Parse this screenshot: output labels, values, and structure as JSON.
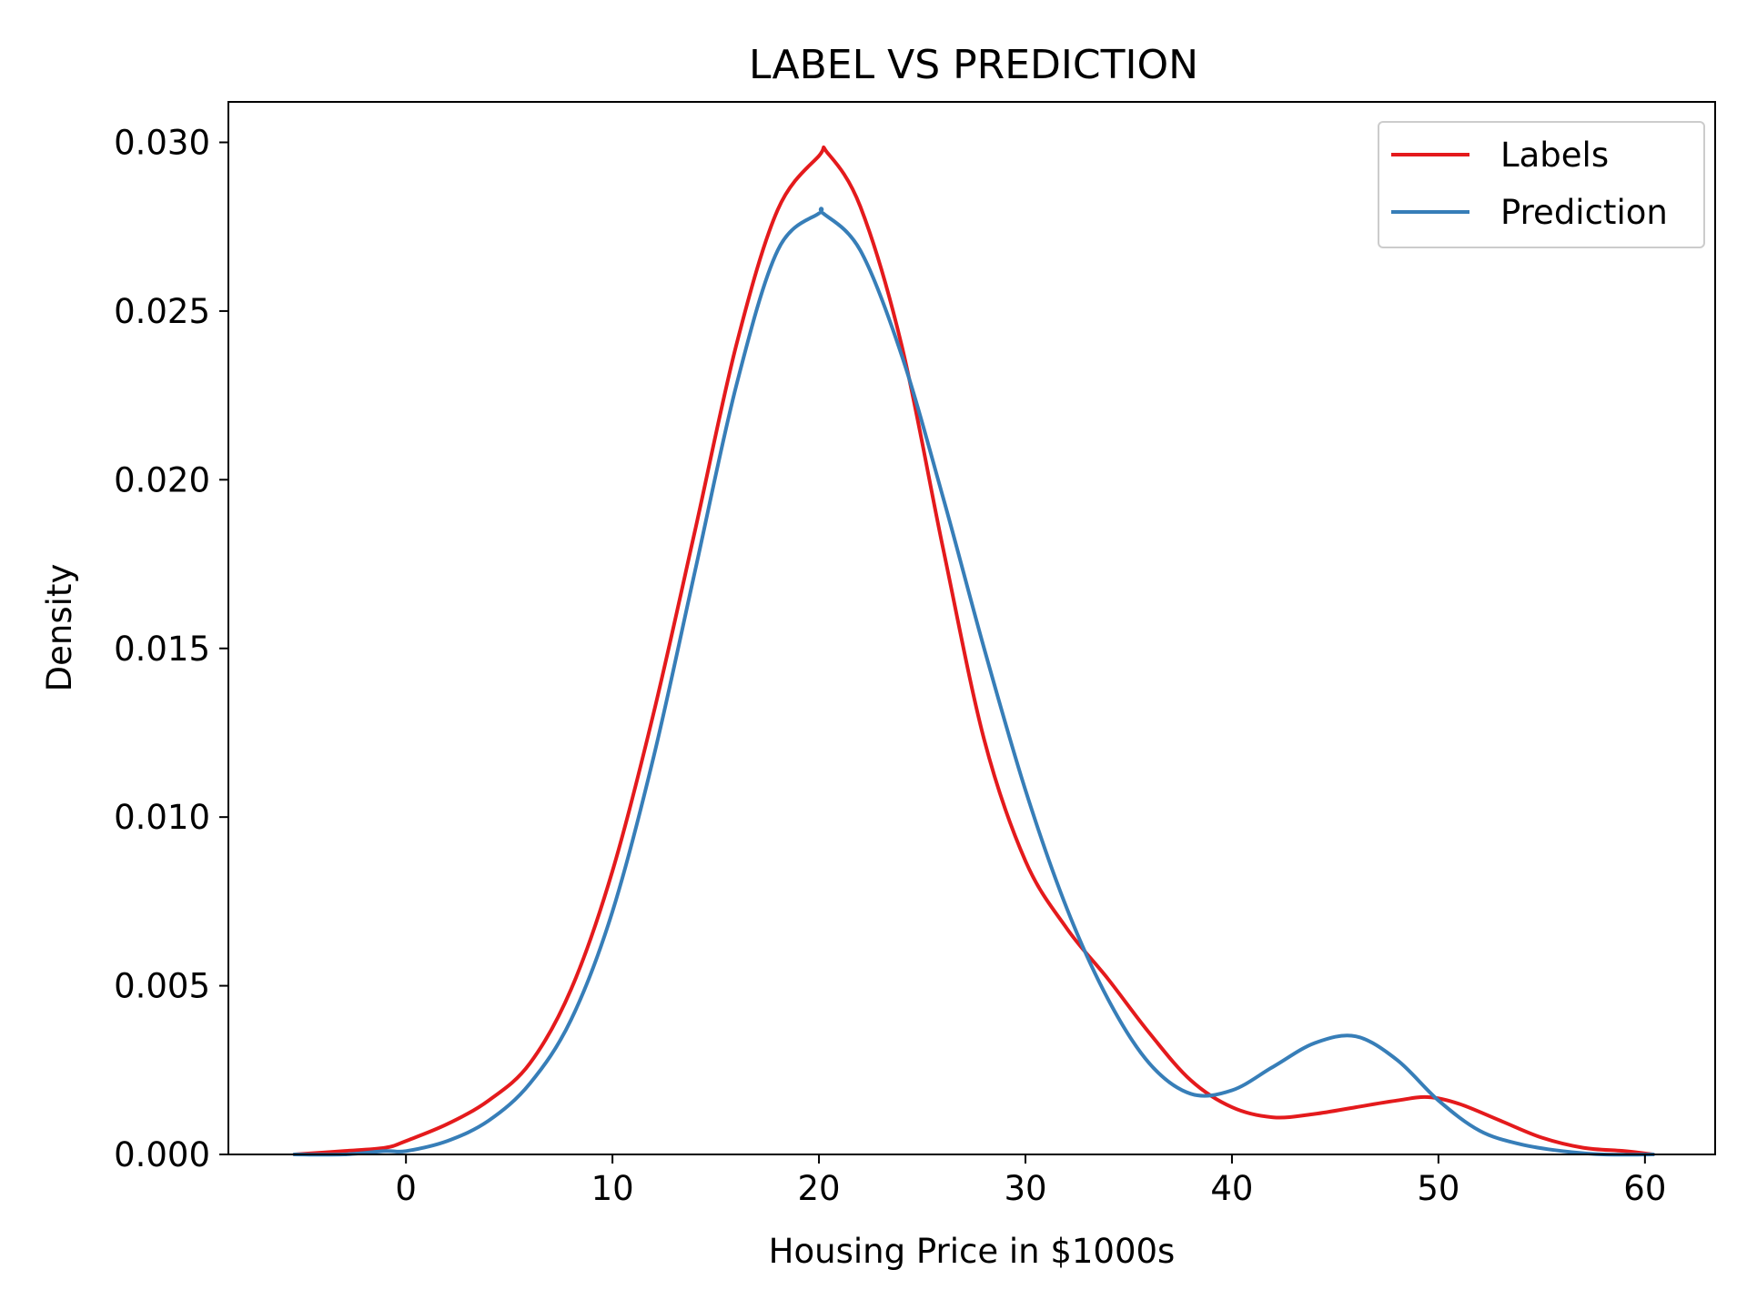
{
  "chart_data": {
    "type": "line",
    "title": "LABEL VS PREDICTION",
    "xlabel": "Housing Price in $1000s",
    "ylabel": "Density",
    "xlim": [
      -8.6,
      63.4
    ],
    "ylim": [
      0,
      0.0312
    ],
    "xticks": [
      0,
      10,
      20,
      30,
      40,
      50,
      60
    ],
    "xtick_labels": [
      "0",
      "10",
      "20",
      "30",
      "40",
      "50",
      "60"
    ],
    "yticks": [
      0.0,
      0.005,
      0.01,
      0.015,
      0.02,
      0.025,
      0.03
    ],
    "ytick_labels": [
      "0.000",
      "0.005",
      "0.010",
      "0.015",
      "0.020",
      "0.025",
      "0.030"
    ],
    "grid": false,
    "legend_position": "top-right",
    "series": [
      {
        "name": "Labels",
        "color": "#e41a1c",
        "x": [
          -5.4,
          -3,
          -1,
          0,
          2,
          4,
          6,
          8,
          10,
          12,
          14,
          16,
          18,
          20,
          20.4,
          22,
          24,
          26,
          28,
          30,
          32,
          34,
          36,
          38,
          40,
          42,
          44,
          46,
          48,
          49.5,
          51,
          53,
          55,
          57,
          59,
          60.4
        ],
        "y": [
          0.0,
          0.0001,
          0.0002,
          0.0004,
          0.0009,
          0.0016,
          0.0027,
          0.0049,
          0.0084,
          0.0131,
          0.0185,
          0.024,
          0.028,
          0.0296,
          0.0297,
          0.0281,
          0.024,
          0.018,
          0.0123,
          0.0087,
          0.0067,
          0.0052,
          0.0036,
          0.0022,
          0.0014,
          0.0011,
          0.0012,
          0.0014,
          0.0016,
          0.0017,
          0.0015,
          0.001,
          0.0005,
          0.0002,
          0.0001,
          0.0
        ]
      },
      {
        "name": "Prediction",
        "color": "#377eb8",
        "x": [
          -5.4,
          -3,
          -1,
          0,
          2,
          4,
          6,
          8,
          10,
          12,
          14,
          16,
          18,
          20,
          20.2,
          22,
          24,
          26,
          28,
          30,
          32,
          34,
          36,
          38,
          40,
          42,
          44,
          46,
          48,
          50,
          52,
          54,
          56,
          58,
          60.4
        ],
        "y": [
          0.0,
          0.0,
          0.0001,
          0.0001,
          0.0004,
          0.001,
          0.0021,
          0.004,
          0.0072,
          0.0118,
          0.0173,
          0.0228,
          0.0268,
          0.0279,
          0.0279,
          0.0268,
          0.0237,
          0.0195,
          0.015,
          0.0108,
          0.0073,
          0.0046,
          0.0027,
          0.0018,
          0.0019,
          0.0026,
          0.0033,
          0.0035,
          0.0028,
          0.0016,
          0.0007,
          0.0003,
          0.0001,
          0.0,
          0.0
        ]
      }
    ]
  }
}
